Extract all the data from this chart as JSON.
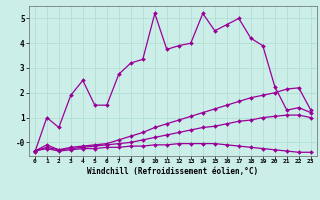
{
  "title": "",
  "xlabel": "Windchill (Refroidissement éolien,°C)",
  "bg_color": "#cceee8",
  "grid_color": "#aaddcc",
  "line_color": "#990099",
  "xlim": [
    -0.5,
    23.5
  ],
  "ylim": [
    -0.55,
    5.5
  ],
  "xticks": [
    0,
    1,
    2,
    3,
    4,
    5,
    6,
    7,
    8,
    9,
    10,
    11,
    12,
    13,
    14,
    15,
    16,
    17,
    18,
    19,
    20,
    21,
    22,
    23
  ],
  "yticks": [
    0,
    1,
    2,
    3,
    4,
    5
  ],
  "ytick_labels": [
    "-0",
    "1",
    "2",
    "3",
    "4",
    "5"
  ],
  "curve1": [
    -0.4,
    1.0,
    0.6,
    1.9,
    2.5,
    1.5,
    1.5,
    2.75,
    3.2,
    3.35,
    5.2,
    3.75,
    3.9,
    4.0,
    5.2,
    4.5,
    4.75,
    5.0,
    4.2,
    3.9,
    2.25,
    1.3,
    1.4,
    1.2
  ],
  "curve2": [
    -0.35,
    -0.1,
    -0.3,
    -0.2,
    -0.15,
    -0.1,
    -0.05,
    0.1,
    0.25,
    0.4,
    0.6,
    0.75,
    0.9,
    1.05,
    1.2,
    1.35,
    1.5,
    1.65,
    1.8,
    1.9,
    2.0,
    2.15,
    2.2,
    1.3
  ],
  "curve3": [
    -0.35,
    -0.2,
    -0.3,
    -0.25,
    -0.2,
    -0.15,
    -0.1,
    -0.05,
    0.0,
    0.1,
    0.2,
    0.3,
    0.4,
    0.5,
    0.6,
    0.65,
    0.75,
    0.85,
    0.9,
    1.0,
    1.05,
    1.1,
    1.1,
    1.0
  ],
  "curve4": [
    -0.35,
    -0.25,
    -0.35,
    -0.3,
    -0.25,
    -0.25,
    -0.2,
    -0.2,
    -0.15,
    -0.15,
    -0.1,
    -0.1,
    -0.05,
    -0.05,
    -0.05,
    -0.05,
    -0.1,
    -0.15,
    -0.2,
    -0.25,
    -0.3,
    -0.35,
    -0.4,
    -0.4
  ]
}
